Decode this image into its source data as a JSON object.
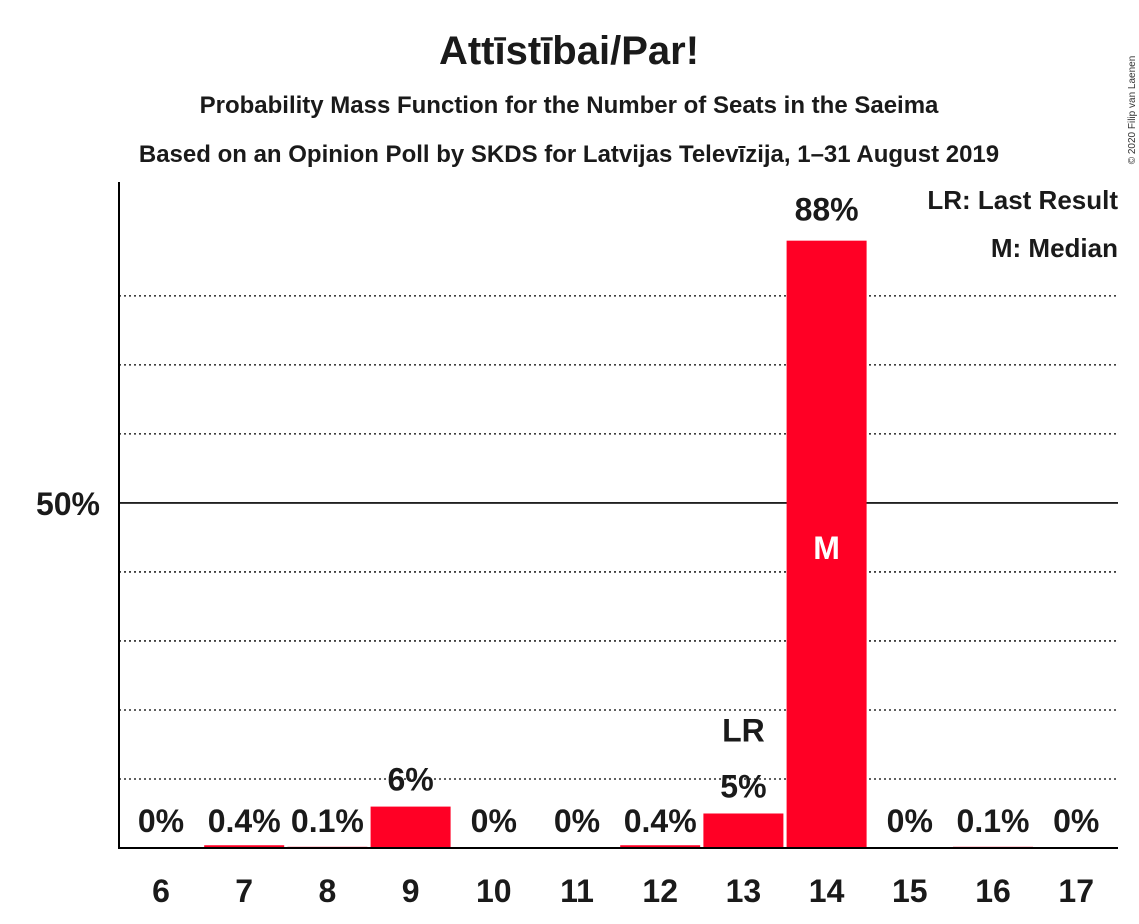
{
  "title": "Attīstībai/Par!",
  "subtitle1": "Probability Mass Function for the Number of Seats in the Saeima",
  "subtitle2": "Based on an Opinion Poll by SKDS for Latvijas Televīzija, 1–31 August 2019",
  "copyright": "© 2020 Filip van Laenen",
  "legend": {
    "last_result": "LR: Last Result",
    "median": "M: Median"
  },
  "colors": {
    "bar": "#ff0025",
    "axis": "#000000",
    "text": "#1a1a1a",
    "median_text": "#ffffff"
  },
  "chart_data": {
    "type": "bar",
    "categories": [
      "6",
      "7",
      "8",
      "9",
      "10",
      "11",
      "12",
      "13",
      "14",
      "15",
      "16",
      "17"
    ],
    "values": [
      0,
      0.4,
      0.1,
      6,
      0,
      0,
      0.4,
      5,
      88,
      0,
      0.1,
      0
    ],
    "value_labels": [
      "0%",
      "0.4%",
      "0.1%",
      "6%",
      "0%",
      "0%",
      "0.4%",
      "5%",
      "88%",
      "0%",
      "0.1%",
      "0%"
    ],
    "y_tick_label": "50%",
    "y_tick_value": 50,
    "ylim": [
      0,
      96.5
    ],
    "gridlines": [
      10,
      20,
      30,
      40,
      50,
      60,
      70,
      80
    ],
    "last_result_category": "13",
    "last_result_marker": "LR",
    "median_category": "14",
    "median_marker": "M"
  }
}
